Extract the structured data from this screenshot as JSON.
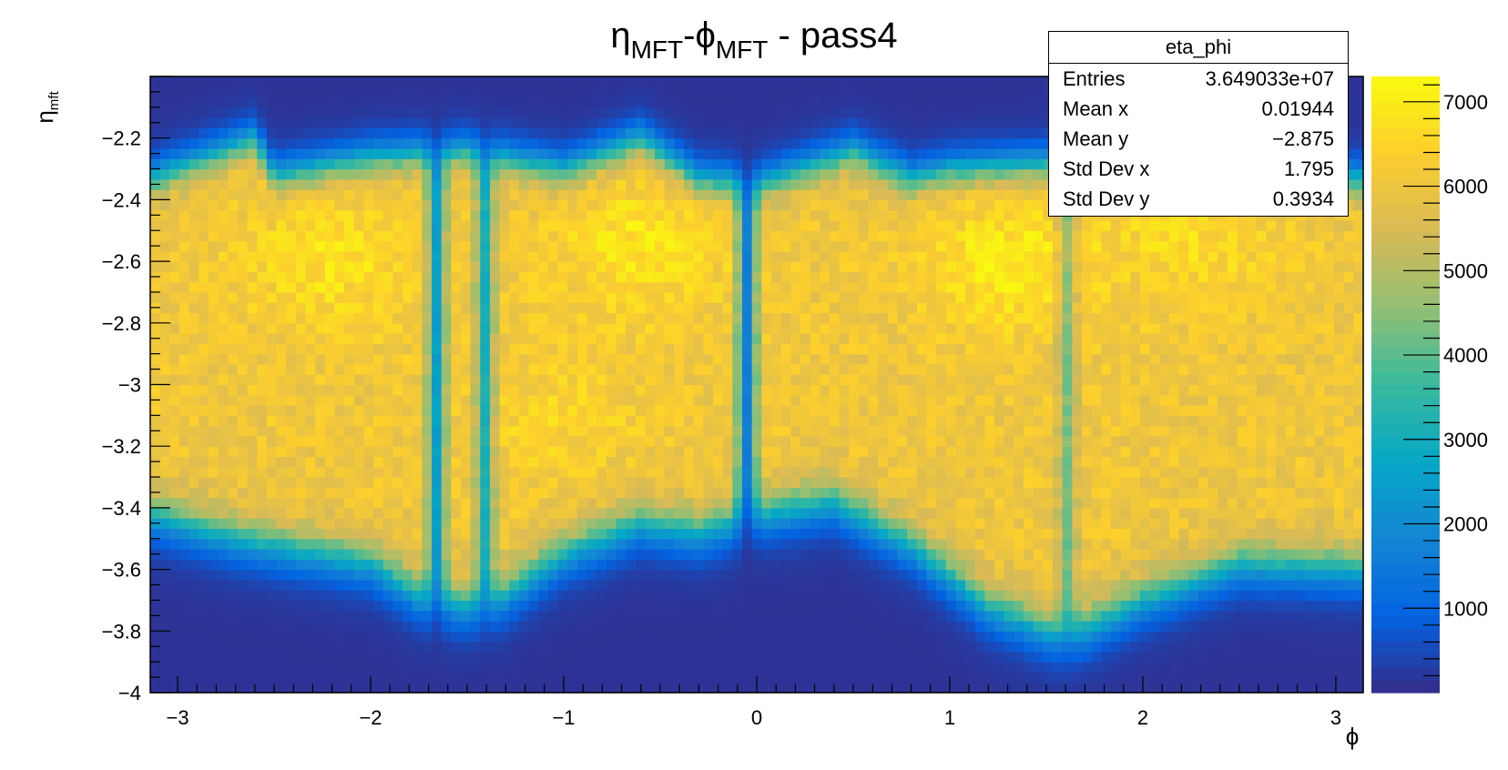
{
  "title": {
    "eta_symbol": "η",
    "eta_sub": "MFT",
    "sep": "-",
    "phi_symbol": "ϕ",
    "phi_sub": "MFT",
    "suffix": " - pass4"
  },
  "stats": {
    "name": "eta_phi",
    "rows": [
      {
        "label": "Entries",
        "value": "3.649033e+07"
      },
      {
        "label": "Mean x",
        "value": "0.01944"
      },
      {
        "label": "Mean y",
        "value": "−2.875"
      },
      {
        "label": "Std Dev x",
        "value": "1.795"
      },
      {
        "label": "Std Dev y",
        "value": "0.3934"
      }
    ]
  },
  "chart_data": {
    "type": "heatmap",
    "xlabel": "ϕ",
    "ylabel_symbol": "η",
    "ylabel_sub": "mft",
    "xlim": [
      -3.1416,
      3.1416
    ],
    "ylim": [
      -4.0,
      -2.0
    ],
    "x_ticks": [
      -3,
      -2,
      -1,
      0,
      1,
      2,
      3
    ],
    "x_tick_labels": [
      "−3",
      "−2",
      "−1",
      "0",
      "1",
      "2",
      "3"
    ],
    "y_ticks": [
      -2.2,
      -2.4,
      -2.6,
      -2.8,
      -3.0,
      -3.2,
      -3.4,
      -3.6,
      -3.8,
      -4.0
    ],
    "y_tick_labels": [
      "−2.2",
      "−2.4",
      "−2.6",
      "−2.8",
      "−3",
      "−3.2",
      "−3.4",
      "−3.6",
      "−3.8",
      "−4"
    ],
    "z_range": [
      0,
      7300
    ],
    "z_ticks": [
      1000,
      2000,
      3000,
      4000,
      5000,
      6000,
      7000
    ],
    "z_tick_labels": [
      "1000",
      "2000",
      "3000",
      "4000",
      "5000",
      "6000",
      "7000"
    ],
    "nbins_x": 125,
    "nbins_y": 60,
    "plateau_density": 5900,
    "background_density": 150,
    "upper_edge": {
      "phi": [
        -3.14,
        -2.6,
        -2.5,
        -2.0,
        -1.5,
        -1.0,
        -0.6,
        -0.3,
        0.0,
        0.5,
        0.8,
        1.0,
        1.5,
        2.0,
        2.5,
        3.14
      ],
      "eta": [
        -2.33,
        -2.2,
        -2.32,
        -2.26,
        -2.24,
        -2.3,
        -2.2,
        -2.33,
        -2.35,
        -2.24,
        -2.33,
        -2.3,
        -2.28,
        -2.28,
        -2.32,
        -2.33
      ]
    },
    "lower_edge": {
      "phi": [
        -3.14,
        -2.7,
        -2.0,
        -1.7,
        -1.4,
        -1.0,
        -0.6,
        -0.3,
        0.0,
        0.4,
        0.8,
        1.2,
        1.6,
        2.0,
        2.5,
        3.14
      ],
      "eta": [
        -3.42,
        -3.5,
        -3.58,
        -3.7,
        -3.72,
        -3.55,
        -3.45,
        -3.48,
        -3.42,
        -3.38,
        -3.52,
        -3.72,
        -3.82,
        -3.7,
        -3.58,
        -3.6
      ]
    },
    "gaps": [
      {
        "phi": -0.06,
        "width": 0.04,
        "depth": 0.75
      },
      {
        "phi": -1.65,
        "width": 0.04,
        "depth": 0.6
      },
      {
        "phi": -1.4,
        "width": 0.035,
        "depth": 0.5
      },
      {
        "phi": 1.62,
        "width": 0.03,
        "depth": 0.3
      }
    ],
    "hot_regions": [
      {
        "phi": -2.2,
        "eta": -2.6,
        "amplitude": 700
      },
      {
        "phi": -0.6,
        "eta": -2.55,
        "amplitude": 800
      },
      {
        "phi": 1.3,
        "eta": -2.6,
        "amplitude": 900
      },
      {
        "phi": 2.3,
        "eta": -2.5,
        "amplitude": 600
      },
      {
        "phi": -1.0,
        "eta": -3.1,
        "amplitude": 400
      }
    ]
  },
  "colors": {
    "palette": [
      "#352a87",
      "#0363e1",
      "#1485d4",
      "#06a7c6",
      "#38b99e",
      "#92bf73",
      "#d9ba56",
      "#fcce2e",
      "#f9fb0e"
    ]
  }
}
